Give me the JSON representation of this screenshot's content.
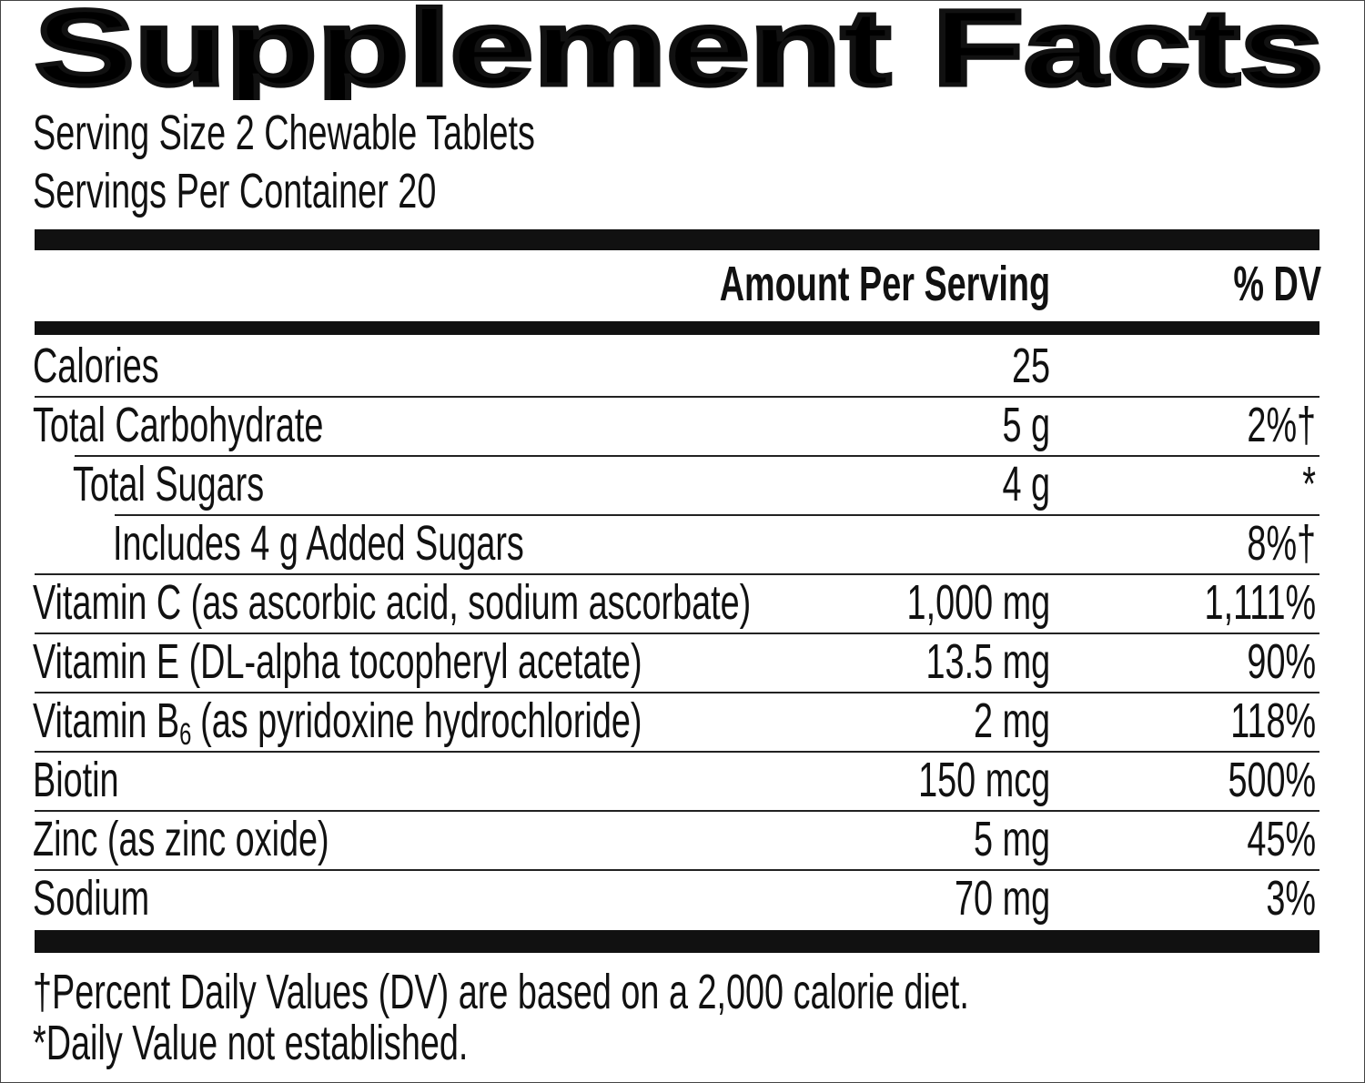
{
  "title": "Supplement Facts",
  "serving_size": "Serving Size 2 Chewable Tablets",
  "servings_per_container": "Servings Per Container 20",
  "header": {
    "amount": "Amount Per Serving",
    "dv": "% DV"
  },
  "rows": [
    {
      "name": "Calories",
      "amount": "25",
      "level": 0
    },
    {
      "name": "Total Carbohydrate",
      "amount": "5 g",
      "dv": "2%†",
      "level": 0
    },
    {
      "name": "Total Sugars",
      "amount": "4 g",
      "dv": "*",
      "level": 1
    },
    {
      "name": "Includes 4 g Added Sugars",
      "dv": "8%†",
      "level": 2
    },
    {
      "name": "Vitamin C (as ascorbic acid, sodium ascorbate)",
      "amount": "1,000 mg",
      "dv": "1,111%",
      "level": 0
    },
    {
      "name": "Vitamin E (DL-alpha tocopheryl acetate)",
      "amount": "13.5 mg",
      "dv": "90%",
      "level": 0
    },
    {
      "name": "Vitamin B",
      "subscript": "6",
      "name_after": "(as pyridoxine hydrochloride)",
      "amount": "2 mg",
      "dv": "118%",
      "level": 0
    },
    {
      "name": "Biotin",
      "amount": "150 mcg",
      "dv": "500%",
      "level": 0
    },
    {
      "name": "Zinc (as zinc oxide)",
      "amount": "5 mg",
      "dv": "45%",
      "level": 0
    },
    {
      "name": "Sodium",
      "amount": "70 mg",
      "dv": "3%",
      "level": 0
    }
  ],
  "footnotes": [
    "†Percent Daily Values (DV) are based on a 2,000 calorie diet.",
    "*Daily Value not established."
  ]
}
